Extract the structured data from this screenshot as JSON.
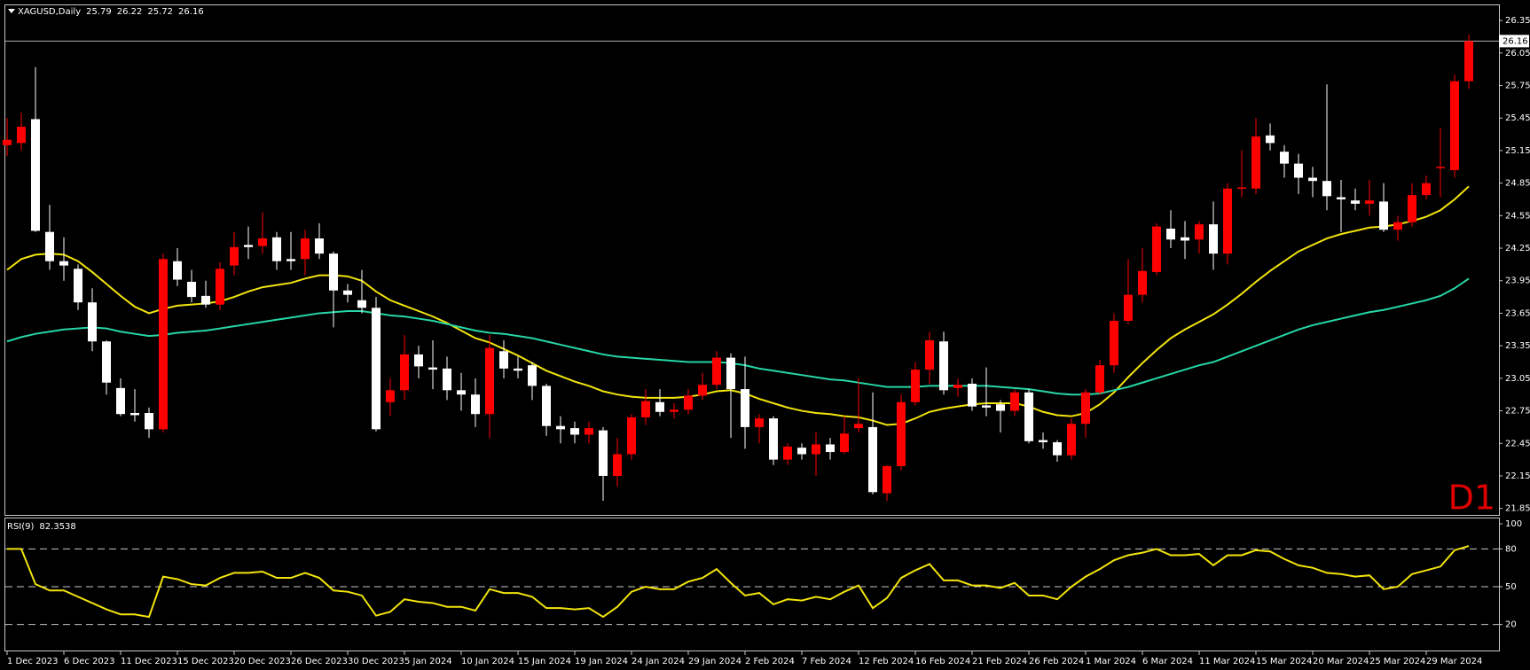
{
  "chart_data": [
    {
      "type": "candlestick",
      "title": "XAGUSD,Daily",
      "categories": [
        "1 Dec 2023",
        null,
        null,
        null,
        "6 Dec 2023",
        null,
        null,
        null,
        "11 Dec 2023",
        null,
        null,
        null,
        "15 Dec 2023",
        null,
        null,
        null,
        "20 Dec 2023",
        null,
        null,
        null,
        "26 Dec 2023",
        null,
        null,
        null,
        "30 Dec 2023",
        null,
        null,
        null,
        "5 Jan 2024",
        null,
        null,
        null,
        "10 Jan 2024",
        null,
        null,
        null,
        "15 Jan 2024",
        null,
        null,
        null,
        "19 Jan 2024",
        null,
        null,
        null,
        "24 Jan 2024",
        null,
        null,
        null,
        "29 Jan 2024",
        null,
        null,
        null,
        "2 Feb 2024",
        null,
        null,
        null,
        "7 Feb 2024",
        null,
        null,
        null,
        "12 Feb 2024",
        null,
        null,
        null,
        "16 Feb 2024",
        null,
        null,
        null,
        "21 Feb 2024",
        null,
        null,
        null,
        "26 Feb 2024",
        null,
        null,
        null,
        "1 Mar 2024",
        null,
        null,
        null,
        "6 Mar 2024",
        null,
        null,
        null,
        "11 Mar 2024",
        null,
        null,
        null,
        "15 Mar 2024",
        null,
        null,
        null,
        "20 Mar 2024",
        null,
        null,
        null,
        "25 Mar 2024",
        null,
        null,
        null,
        "29 Mar 2024",
        null,
        null,
        null
      ],
      "open": [
        25.2,
        25.22,
        25.44,
        24.4,
        24.13,
        24.06,
        23.75,
        23.39,
        22.96,
        22.73,
        22.73,
        22.58,
        24.13,
        23.94,
        23.81,
        23.73,
        24.09,
        24.28,
        24.27,
        24.35,
        24.15,
        24.15,
        24.34,
        24.2,
        23.86,
        23.77,
        23.7,
        22.83,
        22.94,
        23.27,
        23.15,
        23.14,
        22.94,
        22.9,
        22.72,
        23.3,
        23.14,
        23.17,
        22.98,
        22.61,
        22.59,
        22.53,
        22.57,
        22.15,
        22.35,
        22.69,
        22.83,
        22.74,
        22.76,
        22.89,
        22.99,
        23.24,
        22.95,
        22.6,
        22.68,
        22.3,
        22.41,
        22.35,
        22.44,
        22.37,
        22.59,
        22.6,
        21.99,
        22.24,
        22.83,
        23.13,
        23.39,
        22.96,
        23.0,
        22.8,
        22.81,
        22.75,
        22.92,
        22.48,
        22.46,
        22.34,
        22.63,
        22.92,
        23.17,
        23.58,
        23.82,
        24.03,
        24.43,
        24.35,
        24.33,
        24.47,
        24.2,
        24.8,
        24.8,
        25.29,
        25.14,
        25.03,
        24.9,
        24.87,
        24.72,
        24.69,
        24.66,
        24.68,
        24.42,
        24.49,
        24.74,
        24.99,
        24.97,
        25.79
      ],
      "high": [
        25.45,
        25.5,
        25.92,
        24.65,
        24.35,
        24.1,
        23.88,
        23.4,
        23.05,
        22.95,
        22.78,
        24.2,
        24.25,
        24.05,
        23.95,
        24.12,
        24.4,
        24.45,
        24.58,
        24.4,
        24.4,
        24.42,
        24.48,
        24.22,
        23.92,
        24.05,
        23.8,
        23.05,
        23.45,
        23.35,
        23.4,
        23.25,
        23.1,
        23.05,
        23.45,
        23.4,
        23.25,
        23.2,
        23.0,
        22.7,
        22.65,
        22.65,
        22.6,
        22.5,
        22.72,
        22.95,
        22.95,
        22.82,
        22.95,
        23.1,
        23.3,
        23.28,
        23.25,
        22.72,
        22.7,
        22.45,
        22.45,
        22.55,
        22.5,
        22.7,
        23.05,
        22.92,
        22.25,
        22.9,
        23.2,
        23.48,
        23.48,
        23.05,
        23.05,
        23.15,
        22.85,
        22.95,
        22.95,
        22.55,
        22.48,
        22.68,
        22.95,
        23.22,
        23.65,
        24.15,
        24.25,
        24.48,
        24.6,
        24.5,
        24.5,
        24.68,
        24.85,
        25.15,
        25.45,
        25.4,
        25.2,
        25.12,
        25.0,
        25.76,
        24.88,
        24.8,
        24.88,
        24.85,
        24.55,
        24.85,
        24.92,
        25.36,
        25.85,
        26.22
      ],
      "low": [
        25.1,
        25.15,
        24.4,
        24.05,
        23.95,
        23.68,
        23.3,
        22.9,
        22.7,
        22.65,
        22.5,
        22.55,
        23.9,
        23.75,
        23.7,
        23.68,
        24.0,
        24.15,
        24.2,
        24.05,
        24.05,
        24.0,
        24.15,
        23.52,
        23.75,
        23.65,
        22.56,
        22.7,
        22.85,
        23.05,
        22.95,
        22.85,
        22.75,
        22.6,
        22.5,
        23.05,
        23.05,
        22.85,
        22.52,
        22.45,
        22.45,
        22.45,
        21.92,
        22.05,
        22.3,
        22.62,
        22.7,
        22.68,
        22.72,
        22.85,
        22.95,
        22.5,
        22.4,
        22.45,
        22.25,
        22.25,
        22.3,
        22.15,
        22.3,
        22.35,
        22.55,
        21.98,
        21.92,
        22.2,
        22.8,
        23.0,
        22.9,
        22.88,
        22.75,
        22.7,
        22.55,
        22.7,
        22.45,
        22.4,
        22.28,
        22.3,
        22.5,
        22.9,
        23.1,
        23.55,
        23.75,
        24.0,
        24.25,
        24.15,
        24.2,
        24.05,
        24.1,
        24.72,
        24.75,
        25.15,
        24.9,
        24.75,
        24.72,
        24.6,
        24.4,
        24.6,
        24.55,
        24.4,
        24.32,
        24.45,
        24.7,
        24.72,
        24.9,
        25.72
      ],
      "close": [
        25.25,
        25.37,
        24.41,
        24.13,
        24.09,
        23.75,
        23.39,
        23.01,
        22.72,
        22.71,
        22.58,
        24.15,
        23.96,
        23.8,
        23.73,
        24.06,
        24.26,
        24.26,
        24.34,
        24.13,
        24.13,
        24.34,
        24.2,
        23.86,
        23.82,
        23.7,
        22.58,
        22.94,
        23.27,
        23.16,
        23.13,
        22.94,
        22.9,
        22.72,
        23.33,
        23.14,
        23.12,
        22.98,
        22.61,
        22.58,
        22.53,
        22.59,
        22.15,
        22.35,
        22.69,
        22.84,
        22.74,
        22.76,
        22.89,
        22.99,
        23.24,
        22.95,
        22.6,
        22.68,
        22.3,
        22.42,
        22.35,
        22.44,
        22.37,
        22.54,
        22.63,
        22.0,
        22.24,
        22.83,
        23.13,
        23.4,
        22.94,
        22.99,
        22.79,
        22.78,
        22.75,
        22.92,
        22.47,
        22.46,
        22.34,
        22.63,
        22.92,
        23.17,
        23.58,
        23.82,
        24.04,
        24.45,
        24.33,
        24.32,
        24.47,
        24.2,
        24.8,
        24.81,
        25.28,
        25.22,
        25.03,
        24.9,
        24.87,
        24.73,
        24.7,
        24.66,
        24.69,
        24.42,
        24.49,
        24.74,
        24.85,
        25.0,
        25.79,
        26.16
      ],
      "up_color": "#ff0000",
      "down_color": "#ffffff",
      "series": [
        {
          "color": "#f2e40c",
          "values": [
            24.05,
            24.15,
            24.19,
            24.2,
            24.19,
            24.13,
            24.03,
            23.92,
            23.81,
            23.71,
            23.65,
            23.69,
            23.72,
            23.73,
            23.74,
            23.76,
            23.8,
            23.85,
            23.89,
            23.91,
            23.93,
            23.97,
            24.0,
            24.0,
            23.99,
            23.95,
            23.85,
            23.77,
            23.72,
            23.67,
            23.62,
            23.56,
            23.49,
            23.42,
            23.38,
            23.32,
            23.26,
            23.19,
            23.12,
            23.07,
            23.02,
            22.98,
            22.93,
            22.9,
            22.88,
            22.87,
            22.87,
            22.87,
            22.88,
            22.9,
            22.93,
            22.94,
            22.91,
            22.86,
            22.82,
            22.78,
            22.75,
            22.73,
            22.72,
            22.7,
            22.69,
            22.66,
            22.62,
            22.63,
            22.68,
            22.74,
            22.77,
            22.79,
            22.81,
            22.82,
            22.82,
            22.82,
            22.79,
            22.74,
            22.71,
            22.7,
            22.73,
            22.81,
            22.92,
            23.06,
            23.19,
            23.31,
            23.42,
            23.5,
            23.57,
            23.64,
            23.73,
            23.83,
            23.94,
            24.04,
            24.13,
            24.22,
            24.28,
            24.34,
            24.38,
            24.41,
            24.44,
            24.45,
            24.47,
            24.5,
            24.54,
            24.6,
            24.7,
            24.82
          ]
        },
        {
          "color": "#26d6a6",
          "values": [
            23.39,
            23.43,
            23.46,
            23.48,
            23.5,
            23.51,
            23.52,
            23.51,
            23.48,
            23.46,
            23.44,
            23.45,
            23.47,
            23.48,
            23.49,
            23.51,
            23.53,
            23.55,
            23.57,
            23.59,
            23.61,
            23.63,
            23.65,
            23.66,
            23.67,
            23.67,
            23.65,
            23.63,
            23.62,
            23.6,
            23.58,
            23.55,
            23.52,
            23.49,
            23.47,
            23.46,
            23.44,
            23.42,
            23.39,
            23.36,
            23.33,
            23.3,
            23.27,
            23.25,
            23.24,
            23.23,
            23.22,
            23.21,
            23.2,
            23.2,
            23.2,
            23.19,
            23.17,
            23.14,
            23.12,
            23.1,
            23.08,
            23.06,
            23.04,
            23.03,
            23.01,
            22.99,
            22.97,
            22.97,
            22.97,
            22.98,
            22.98,
            22.98,
            22.98,
            22.98,
            22.97,
            22.96,
            22.95,
            22.93,
            22.91,
            22.9,
            22.9,
            22.91,
            22.94,
            22.97,
            23.01,
            23.05,
            23.09,
            23.13,
            23.17,
            23.2,
            23.25,
            23.3,
            23.35,
            23.4,
            23.45,
            23.5,
            23.54,
            23.57,
            23.6,
            23.63,
            23.66,
            23.68,
            23.71,
            23.74,
            23.77,
            23.81,
            23.88,
            23.97
          ]
        }
      ],
      "current_price": 26.16,
      "annotation": "D1",
      "ylim": [
        21.79,
        26.49
      ],
      "yticks": [
        26.35,
        26.05,
        25.75,
        25.45,
        25.15,
        24.85,
        24.55,
        24.25,
        23.95,
        23.65,
        23.35,
        23.05,
        22.75,
        22.45,
        22.15,
        21.85
      ]
    },
    {
      "type": "line",
      "title": "RSI(9)",
      "color": "#f2e40c",
      "values": [
        80,
        80,
        52,
        47,
        47,
        42,
        37,
        32,
        28,
        28,
        26,
        58,
        56,
        52,
        51,
        57,
        61,
        61,
        62,
        57,
        57,
        61,
        57,
        47,
        46,
        43,
        27,
        30,
        40,
        38,
        37,
        34,
        34,
        31,
        48,
        45,
        45,
        42,
        33,
        33,
        32,
        33,
        26,
        34,
        46,
        50,
        48,
        48,
        54,
        57,
        64,
        53,
        43,
        45,
        36,
        40,
        39,
        42,
        40,
        46,
        51,
        33,
        41,
        57,
        63,
        68,
        55,
        55,
        51,
        51,
        49,
        53,
        43,
        43,
        40,
        50,
        58,
        64,
        71,
        75,
        77,
        80,
        75,
        75,
        76,
        67,
        75,
        75,
        79,
        78,
        72,
        67,
        65,
        61,
        60,
        58,
        59,
        48,
        50,
        60,
        63,
        66,
        79,
        82.3538
      ],
      "ylim": [
        0,
        100
      ],
      "yticks": [
        100,
        80,
        50,
        20
      ],
      "levels": [
        80,
        50,
        20
      ]
    }
  ]
}
